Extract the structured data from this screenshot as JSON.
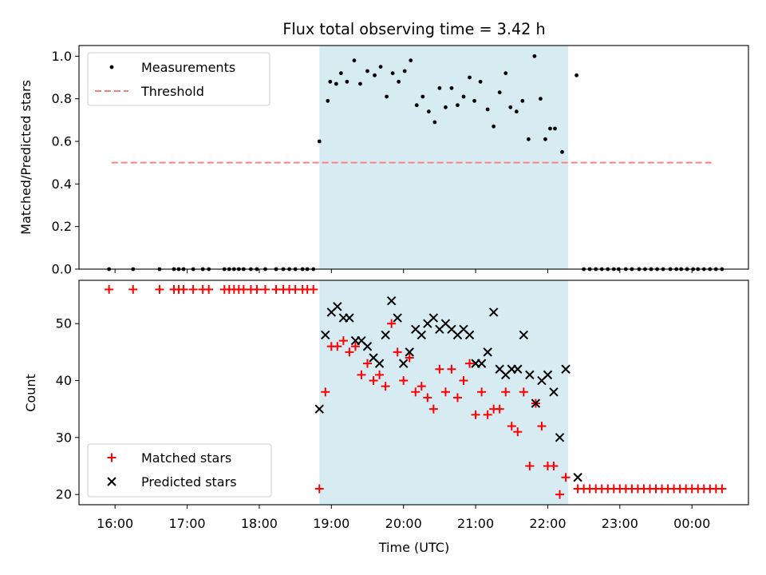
{
  "title": "Flux total observing time = 3.42 h",
  "colors": {
    "measurement": "#000000",
    "threshold": "#ff7f7f",
    "span": "#add8e6",
    "matched": "#ff0000",
    "predicted": "#000000"
  },
  "chart_data": [
    {
      "type": "scatter",
      "ylabel": "Matched/Predicted stars",
      "ylim": [
        0,
        1.05
      ],
      "xlim": [
        "15:30",
        "00:47"
      ],
      "yticks": [
        0.0,
        0.2,
        0.4,
        0.6,
        0.8,
        1.0
      ],
      "ytick_labels": [
        "0.0",
        "0.2",
        "0.4",
        "0.6",
        "0.8",
        "1.0"
      ],
      "legend": {
        "placement": "upper-left",
        "entries": [
          "Measurements",
          "Threshold"
        ]
      },
      "observing_span": {
        "start": "18:50",
        "end": "22:17"
      },
      "threshold": {
        "value": 0.5,
        "x_start": "15:57",
        "x_end": "00:17"
      },
      "series": [
        {
          "name": "Measurements",
          "x": [
            "15:55",
            "16:15",
            "16:37",
            "16:49",
            "16:53",
            "16:57",
            "17:05",
            "17:13",
            "17:18",
            "17:31",
            "17:35",
            "17:39",
            "17:43",
            "17:47",
            "17:53",
            "17:58",
            "18:05",
            "18:14",
            "18:20",
            "18:25",
            "18:30",
            "18:36",
            "18:40",
            "18:45",
            "18:50",
            "18:57",
            "18:59",
            "19:04",
            "19:08",
            "19:13",
            "19:19",
            "19:24",
            "19:30",
            "19:36",
            "19:41",
            "19:46",
            "19:51",
            "19:56",
            "20:01",
            "20:06",
            "20:11",
            "20:16",
            "20:21",
            "20:26",
            "20:30",
            "20:35",
            "20:40",
            "20:45",
            "20:50",
            "20:55",
            "20:59",
            "21:04",
            "21:10",
            "21:15",
            "21:20",
            "21:25",
            "21:29",
            "21:34",
            "21:39",
            "21:44",
            "21:49",
            "21:54",
            "21:58",
            "22:02",
            "22:06",
            "22:12",
            "22:24",
            "22:30",
            "22:35",
            "22:40",
            "22:45",
            "22:50",
            "22:55",
            "22:59",
            "23:05",
            "23:10",
            "23:16",
            "23:21",
            "23:26",
            "23:31",
            "23:36",
            "23:42",
            "23:47",
            "23:51",
            "23:56",
            "00:01",
            "00:05",
            "00:10",
            "00:15",
            "00:20",
            "00:25"
          ],
          "y": [
            0,
            0,
            0,
            0,
            0,
            0,
            0,
            0,
            0,
            0,
            0,
            0,
            0,
            0,
            0,
            0,
            0,
            0,
            0,
            0,
            0,
            0,
            0,
            0,
            0.6,
            0.79,
            0.88,
            0.87,
            0.92,
            0.88,
            0.98,
            0.87,
            0.93,
            0.91,
            0.95,
            0.81,
            0.92,
            0.88,
            0.93,
            0.98,
            0.77,
            0.81,
            0.74,
            0.69,
            0.85,
            0.76,
            0.85,
            0.77,
            0.81,
            0.9,
            0.79,
            0.88,
            0.75,
            0.67,
            0.83,
            0.92,
            0.76,
            0.74,
            0.79,
            0.61,
            1.0,
            0.8,
            0.61,
            0.66,
            0.66,
            0.55,
            0.91,
            0,
            0,
            0,
            0,
            0,
            0,
            0,
            0,
            0,
            0,
            0,
            0,
            0,
            0,
            0,
            0,
            0,
            0,
            0,
            0,
            0,
            0,
            0,
            0
          ]
        }
      ]
    },
    {
      "type": "scatter",
      "xlabel": "Time (UTC)",
      "ylabel": "Count",
      "ylim": [
        18.2,
        57.6
      ],
      "xlim": [
        "15:30",
        "00:47"
      ],
      "yticks": [
        20,
        30,
        40,
        50
      ],
      "ytick_labels": [
        "20",
        "30",
        "40",
        "50"
      ],
      "xticks": [
        "16:00",
        "17:00",
        "18:00",
        "19:00",
        "20:00",
        "21:00",
        "22:00",
        "23:00",
        "00:00"
      ],
      "xtick_labels": [
        "16:00",
        "17:00",
        "18:00",
        "19:00",
        "20:00",
        "21:00",
        "22:00",
        "23:00",
        "00:00"
      ],
      "legend": {
        "placement": "lower-left",
        "entries": [
          "Matched stars",
          "Predicted stars"
        ]
      },
      "observing_span": {
        "start": "18:50",
        "end": "22:17"
      },
      "series": [
        {
          "name": "Matched stars",
          "x": [
            "15:55",
            "16:15",
            "16:37",
            "16:49",
            "16:53",
            "16:57",
            "17:05",
            "17:13",
            "17:18",
            "17:31",
            "17:35",
            "17:39",
            "17:43",
            "17:47",
            "17:53",
            "17:58",
            "18:05",
            "18:14",
            "18:20",
            "18:25",
            "18:30",
            "18:36",
            "18:40",
            "18:45",
            "18:50",
            "18:55",
            "19:00",
            "19:05",
            "19:10",
            "19:15",
            "19:20",
            "19:25",
            "19:30",
            "19:35",
            "19:40",
            "19:45",
            "19:50",
            "19:55",
            "20:00",
            "20:05",
            "20:10",
            "20:15",
            "20:20",
            "20:25",
            "20:30",
            "20:35",
            "20:40",
            "20:45",
            "20:50",
            "20:55",
            "21:00",
            "21:05",
            "21:10",
            "21:15",
            "21:20",
            "21:25",
            "21:30",
            "21:35",
            "21:40",
            "21:45",
            "21:50",
            "21:55",
            "22:00",
            "22:05",
            "22:10",
            "22:15",
            "22:25",
            "22:30",
            "22:35",
            "22:40",
            "22:45",
            "22:50",
            "22:55",
            "23:00",
            "23:05",
            "23:10",
            "23:15",
            "23:20",
            "23:25",
            "23:30",
            "23:35",
            "23:40",
            "23:45",
            "23:50",
            "23:55",
            "00:00",
            "00:05",
            "00:10",
            "00:15",
            "00:20",
            "00:25"
          ],
          "y": [
            56,
            56,
            56,
            56,
            56,
            56,
            56,
            56,
            56,
            56,
            56,
            56,
            56,
            56,
            56,
            56,
            56,
            56,
            56,
            56,
            56,
            56,
            56,
            56,
            21,
            38,
            46,
            46,
            47,
            45,
            46,
            41,
            43,
            40,
            41,
            39,
            50,
            45,
            40,
            44,
            38,
            39,
            37,
            35,
            42,
            38,
            42,
            37,
            40,
            43,
            34,
            38,
            34,
            35,
            35,
            38,
            32,
            31,
            38,
            25,
            36,
            32,
            25,
            25,
            20,
            23,
            21,
            21,
            21,
            21,
            21,
            21,
            21,
            21,
            21,
            21,
            21,
            21,
            21,
            21,
            21,
            21,
            21,
            21,
            21,
            21,
            21,
            21,
            21,
            21,
            21
          ]
        },
        {
          "name": "Predicted stars",
          "x": [
            "18:50",
            "18:55",
            "19:00",
            "19:05",
            "19:10",
            "19:15",
            "19:20",
            "19:25",
            "19:30",
            "19:35",
            "19:40",
            "19:45",
            "19:50",
            "19:55",
            "20:00",
            "20:05",
            "20:10",
            "20:15",
            "20:20",
            "20:25",
            "20:30",
            "20:35",
            "20:40",
            "20:45",
            "20:50",
            "20:55",
            "21:00",
            "21:05",
            "21:10",
            "21:15",
            "21:20",
            "21:25",
            "21:30",
            "21:35",
            "21:40",
            "21:45",
            "21:50",
            "21:55",
            "22:00",
            "22:05",
            "22:10",
            "22:15",
            "22:25"
          ],
          "y": [
            35,
            48,
            52,
            53,
            51,
            51,
            47,
            47,
            46,
            44,
            43,
            48,
            54,
            51,
            43,
            45,
            49,
            48,
            50,
            51,
            49,
            50,
            49,
            48,
            49,
            48,
            43,
            43,
            45,
            52,
            42,
            41,
            42,
            42,
            48,
            41,
            36,
            40,
            41,
            38,
            30,
            42,
            23
          ]
        }
      ]
    }
  ]
}
